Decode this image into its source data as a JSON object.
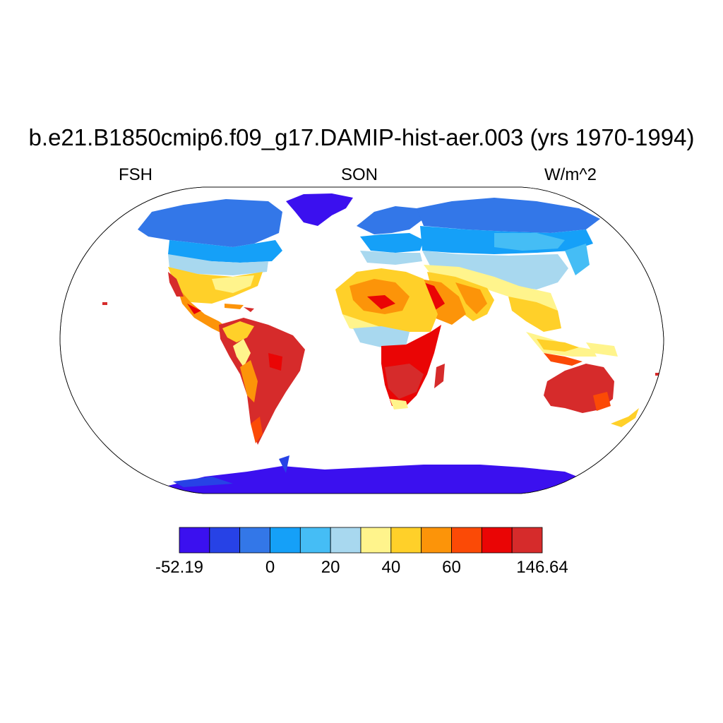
{
  "title": "b.e21.B1850cmip6.f09_g17.DAMIP-hist-aer.003 (yrs 1970-1994)",
  "left_label": "FSH",
  "center_label": "SON",
  "right_label": "W/m^2",
  "colorbar": {
    "colors": [
      "#3b10ef",
      "#2742e6",
      "#3377e8",
      "#15a0f8",
      "#45bdf5",
      "#a8d8ef",
      "#fff48c",
      "#ffd029",
      "#fc9409",
      "#fb4a06",
      "#ea0505",
      "#d62b2b"
    ],
    "labels": [
      "-52.19",
      "0",
      "20",
      "40",
      "60",
      "146.64"
    ]
  }
}
